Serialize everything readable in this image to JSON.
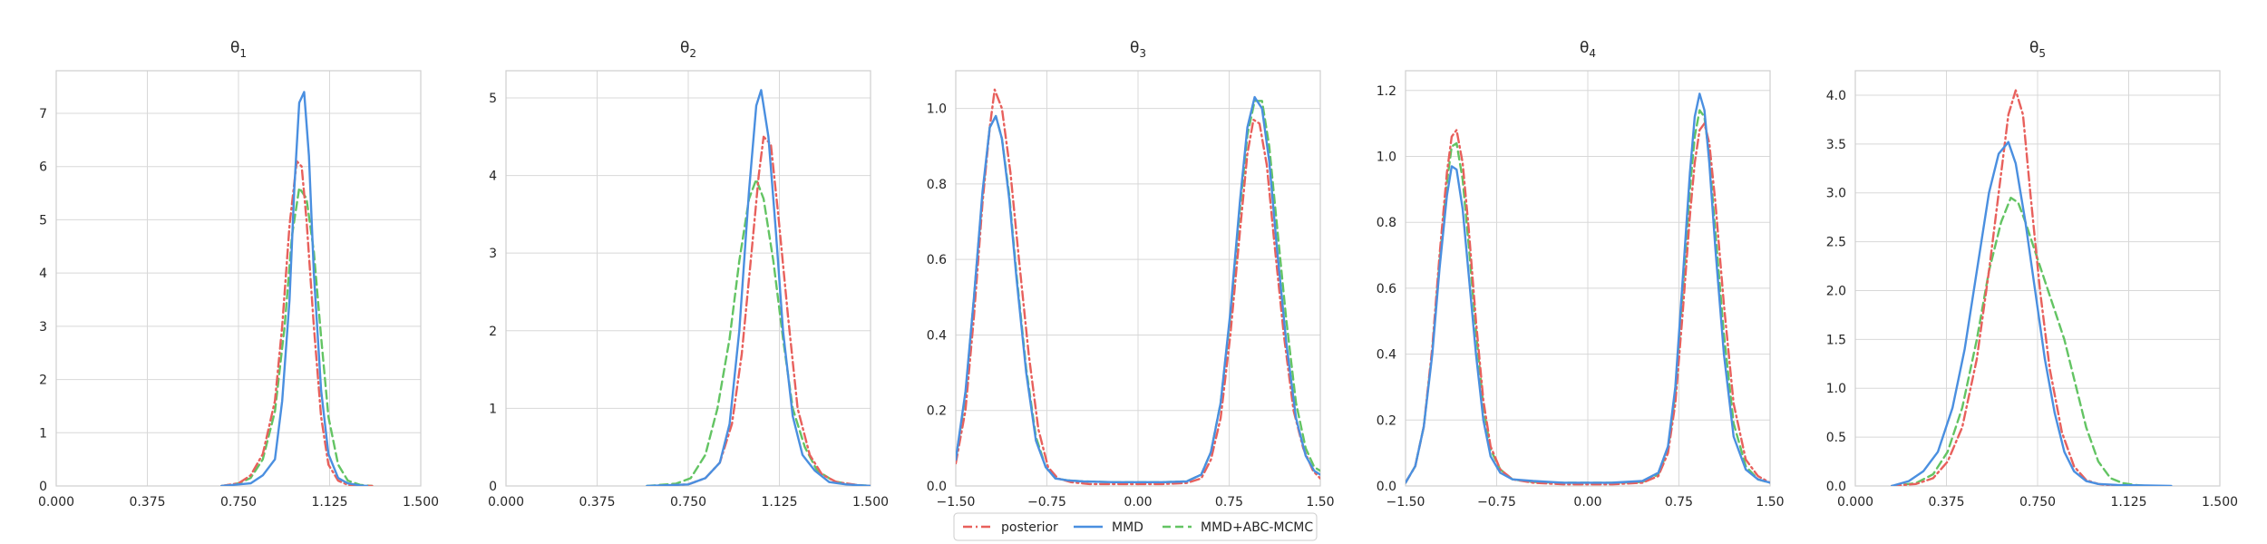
{
  "colors": {
    "posterior": "#e8605c",
    "mmd": "#4a8fe0",
    "mmd_abc": "#63c463",
    "grid": "#d8d8d8",
    "spine": "#cfcfcf"
  },
  "legend": {
    "placement": "bottom-center",
    "entries": [
      {
        "key": "posterior",
        "label": "posterior",
        "dash": "dashdot"
      },
      {
        "key": "mmd",
        "label": "MMD",
        "dash": "solid"
      },
      {
        "key": "mmd_abc",
        "label": "MMD+ABC-MCMC",
        "dash": "dashed"
      }
    ]
  },
  "chart_data": [
    {
      "type": "line",
      "title": "θ1",
      "title_base": "θ",
      "title_sub": "1",
      "xlim": [
        0.0,
        1.5
      ],
      "ylim": [
        0,
        7.8
      ],
      "xticks": [
        "0.000",
        "0.375",
        "0.750",
        "1.125",
        "1.500"
      ],
      "yticks": [
        "0",
        "1",
        "2",
        "3",
        "4",
        "5",
        "6",
        "7"
      ],
      "grid": true,
      "series": [
        {
          "name": "posterior",
          "x": [
            0.68,
            0.75,
            0.8,
            0.85,
            0.9,
            0.93,
            0.96,
            0.99,
            1.01,
            1.03,
            1.06,
            1.09,
            1.12,
            1.16,
            1.2,
            1.25,
            1.3
          ],
          "y": [
            0,
            0.05,
            0.2,
            0.6,
            1.6,
            3.0,
            4.9,
            6.1,
            6.0,
            5.0,
            3.0,
            1.3,
            0.4,
            0.1,
            0.02,
            0,
            0
          ]
        },
        {
          "name": "MMD",
          "x": [
            0.68,
            0.8,
            0.85,
            0.9,
            0.93,
            0.96,
            0.98,
            1.0,
            1.02,
            1.04,
            1.06,
            1.09,
            1.12,
            1.16,
            1.2,
            1.25,
            1.28
          ],
          "y": [
            0,
            0.05,
            0.2,
            0.5,
            1.6,
            3.5,
            5.6,
            7.2,
            7.4,
            6.2,
            4.0,
            1.8,
            0.6,
            0.15,
            0.05,
            0.01,
            0
          ]
        },
        {
          "name": "MMD+ABC-MCMC",
          "x": [
            0.68,
            0.75,
            0.8,
            0.85,
            0.9,
            0.94,
            0.97,
            1.0,
            1.03,
            1.06,
            1.09,
            1.12,
            1.16,
            1.2,
            1.25,
            1.3
          ],
          "y": [
            0,
            0.05,
            0.15,
            0.5,
            1.4,
            3.0,
            4.7,
            5.6,
            5.4,
            4.4,
            2.8,
            1.3,
            0.4,
            0.1,
            0.02,
            0
          ]
        }
      ]
    },
    {
      "type": "line",
      "title": "θ2",
      "title_base": "θ",
      "title_sub": "2",
      "xlim": [
        0.0,
        1.5
      ],
      "ylim": [
        0,
        5.35
      ],
      "xticks": [
        "0.000",
        "0.375",
        "0.750",
        "1.125",
        "1.500"
      ],
      "yticks": [
        "0",
        "1",
        "2",
        "3",
        "4",
        "5"
      ],
      "grid": true,
      "series": [
        {
          "name": "posterior",
          "x": [
            0.6,
            0.75,
            0.82,
            0.88,
            0.93,
            0.97,
            1.01,
            1.04,
            1.06,
            1.09,
            1.12,
            1.16,
            1.2,
            1.25,
            1.3,
            1.36,
            1.45,
            1.5
          ],
          "y": [
            0,
            0.02,
            0.1,
            0.3,
            0.8,
            1.7,
            3.0,
            4.0,
            4.5,
            4.4,
            3.5,
            2.2,
            1.0,
            0.4,
            0.15,
            0.05,
            0.01,
            0
          ]
        },
        {
          "name": "MMD",
          "x": [
            0.58,
            0.75,
            0.82,
            0.88,
            0.92,
            0.96,
            1.0,
            1.03,
            1.05,
            1.08,
            1.11,
            1.14,
            1.18,
            1.22,
            1.27,
            1.33,
            1.4,
            1.5
          ],
          "y": [
            0,
            0.02,
            0.1,
            0.3,
            0.8,
            2.0,
            3.8,
            4.9,
            5.1,
            4.5,
            3.3,
            2.0,
            0.9,
            0.4,
            0.2,
            0.05,
            0.02,
            0
          ]
        },
        {
          "name": "MMD+ABC-MCMC",
          "x": [
            0.58,
            0.7,
            0.76,
            0.82,
            0.87,
            0.92,
            0.96,
            1.0,
            1.03,
            1.06,
            1.1,
            1.14,
            1.18,
            1.23,
            1.28,
            1.35,
            1.42,
            1.5
          ],
          "y": [
            0,
            0.03,
            0.1,
            0.4,
            1.0,
            1.9,
            2.9,
            3.7,
            3.95,
            3.7,
            2.9,
            1.9,
            1.0,
            0.5,
            0.2,
            0.06,
            0.02,
            0
          ]
        }
      ]
    },
    {
      "type": "line",
      "title": "θ3",
      "title_base": "θ",
      "title_sub": "3",
      "xlim": [
        -1.5,
        1.5
      ],
      "ylim": [
        0,
        1.1
      ],
      "xticks": [
        "−1.50",
        "−0.75",
        "0.00",
        "0.75",
        "1.50"
      ],
      "yticks": [
        "0.0",
        "0.2",
        "0.4",
        "0.6",
        "0.8",
        "1.0"
      ],
      "grid": true,
      "series": [
        {
          "name": "posterior",
          "x": [
            -1.5,
            -1.42,
            -1.35,
            -1.28,
            -1.22,
            -1.18,
            -1.12,
            -1.05,
            -0.98,
            -0.9,
            -0.82,
            -0.74,
            -0.66,
            -0.55,
            -0.4,
            -0.2,
            0.0,
            0.2,
            0.4,
            0.52,
            0.6,
            0.68,
            0.76,
            0.84,
            0.9,
            0.95,
            1.0,
            1.06,
            1.12,
            1.2,
            1.28,
            1.36,
            1.44,
            1.5
          ],
          "y": [
            0.06,
            0.2,
            0.45,
            0.75,
            0.95,
            1.05,
            1.0,
            0.83,
            0.6,
            0.35,
            0.15,
            0.05,
            0.02,
            0.01,
            0.005,
            0.005,
            0.005,
            0.005,
            0.008,
            0.02,
            0.07,
            0.18,
            0.4,
            0.68,
            0.88,
            0.97,
            0.96,
            0.85,
            0.65,
            0.4,
            0.2,
            0.1,
            0.04,
            0.02
          ]
        },
        {
          "name": "MMD",
          "x": [
            -1.5,
            -1.42,
            -1.35,
            -1.28,
            -1.22,
            -1.17,
            -1.12,
            -1.06,
            -1.0,
            -0.92,
            -0.84,
            -0.76,
            -0.68,
            -0.58,
            -0.45,
            -0.2,
            0.0,
            0.2,
            0.4,
            0.52,
            0.6,
            0.68,
            0.76,
            0.84,
            0.9,
            0.96,
            1.02,
            1.08,
            1.14,
            1.22,
            1.3,
            1.38,
            1.45,
            1.5
          ],
          "y": [
            0.07,
            0.25,
            0.5,
            0.78,
            0.95,
            0.98,
            0.92,
            0.76,
            0.55,
            0.3,
            0.12,
            0.05,
            0.02,
            0.015,
            0.012,
            0.01,
            0.01,
            0.01,
            0.012,
            0.03,
            0.09,
            0.22,
            0.46,
            0.76,
            0.95,
            1.03,
            1.0,
            0.86,
            0.64,
            0.38,
            0.18,
            0.08,
            0.04,
            0.03
          ]
        },
        {
          "name": "MMD+ABC-MCMC",
          "x": [
            -1.5,
            -1.42,
            -1.35,
            -1.28,
            -1.22,
            -1.17,
            -1.12,
            -1.06,
            -1.0,
            -0.92,
            -0.84,
            -0.76,
            -0.68,
            -0.58,
            -0.45,
            -0.2,
            0.0,
            0.2,
            0.4,
            0.52,
            0.6,
            0.68,
            0.76,
            0.84,
            0.9,
            0.96,
            1.02,
            1.08,
            1.14,
            1.22,
            1.3,
            1.38,
            1.45,
            1.5
          ],
          "y": [
            0.07,
            0.24,
            0.5,
            0.77,
            0.95,
            0.98,
            0.92,
            0.77,
            0.56,
            0.31,
            0.13,
            0.05,
            0.02,
            0.015,
            0.012,
            0.01,
            0.01,
            0.01,
            0.012,
            0.03,
            0.09,
            0.22,
            0.45,
            0.74,
            0.93,
            1.02,
            1.02,
            0.9,
            0.7,
            0.44,
            0.22,
            0.1,
            0.05,
            0.04
          ]
        }
      ]
    },
    {
      "type": "line",
      "title": "θ4",
      "title_base": "θ",
      "title_sub": "4",
      "xlim": [
        -1.5,
        1.5
      ],
      "ylim": [
        0,
        1.26
      ],
      "xticks": [
        "−1.50",
        "−0.75",
        "0.00",
        "0.75",
        "1.50"
      ],
      "yticks": [
        "0.0",
        "0.2",
        "0.4",
        "0.6",
        "0.8",
        "1.0",
        "1.2"
      ],
      "grid": true,
      "series": [
        {
          "name": "posterior",
          "x": [
            -1.5,
            -1.42,
            -1.35,
            -1.28,
            -1.22,
            -1.16,
            -1.12,
            -1.08,
            -1.03,
            -0.98,
            -0.92,
            -0.86,
            -0.8,
            -0.72,
            -0.62,
            -0.45,
            -0.2,
            0.0,
            0.2,
            0.45,
            0.58,
            0.66,
            0.72,
            0.78,
            0.84,
            0.88,
            0.92,
            0.96,
            1.0,
            1.05,
            1.12,
            1.2,
            1.3,
            1.4,
            1.5
          ],
          "y": [
            0.01,
            0.06,
            0.18,
            0.42,
            0.7,
            0.95,
            1.06,
            1.08,
            0.98,
            0.78,
            0.5,
            0.26,
            0.12,
            0.05,
            0.02,
            0.01,
            0.005,
            0.005,
            0.005,
            0.01,
            0.03,
            0.1,
            0.25,
            0.52,
            0.82,
            0.98,
            1.08,
            1.1,
            1.04,
            0.86,
            0.55,
            0.25,
            0.08,
            0.03,
            0.01
          ]
        },
        {
          "name": "MMD",
          "x": [
            -1.5,
            -1.42,
            -1.35,
            -1.28,
            -1.22,
            -1.16,
            -1.12,
            -1.08,
            -1.03,
            -0.98,
            -0.92,
            -0.86,
            -0.8,
            -0.72,
            -0.62,
            -0.45,
            -0.2,
            0.0,
            0.2,
            0.45,
            0.58,
            0.66,
            0.72,
            0.78,
            0.84,
            0.88,
            0.92,
            0.96,
            1.0,
            1.05,
            1.12,
            1.2,
            1.3,
            1.4,
            1.5
          ],
          "y": [
            0.01,
            0.06,
            0.18,
            0.4,
            0.66,
            0.88,
            0.97,
            0.96,
            0.84,
            0.64,
            0.4,
            0.2,
            0.09,
            0.04,
            0.02,
            0.015,
            0.01,
            0.01,
            0.01,
            0.015,
            0.04,
            0.12,
            0.3,
            0.62,
            0.95,
            1.12,
            1.19,
            1.14,
            0.98,
            0.72,
            0.4,
            0.15,
            0.05,
            0.02,
            0.01
          ]
        },
        {
          "name": "MMD+ABC-MCMC",
          "x": [
            -1.5,
            -1.42,
            -1.35,
            -1.28,
            -1.22,
            -1.16,
            -1.12,
            -1.08,
            -1.03,
            -0.98,
            -0.92,
            -0.86,
            -0.8,
            -0.72,
            -0.62,
            -0.45,
            -0.2,
            0.0,
            0.2,
            0.45,
            0.58,
            0.66,
            0.72,
            0.78,
            0.84,
            0.88,
            0.92,
            0.96,
            1.0,
            1.05,
            1.12,
            1.2,
            1.3,
            1.4,
            1.5
          ],
          "y": [
            0.01,
            0.06,
            0.18,
            0.41,
            0.68,
            0.92,
            1.03,
            1.04,
            0.93,
            0.73,
            0.47,
            0.24,
            0.11,
            0.05,
            0.02,
            0.012,
            0.01,
            0.01,
            0.01,
            0.012,
            0.035,
            0.11,
            0.28,
            0.58,
            0.9,
            1.06,
            1.14,
            1.12,
            1.0,
            0.77,
            0.46,
            0.19,
            0.06,
            0.02,
            0.01
          ]
        }
      ]
    },
    {
      "type": "line",
      "title": "θ5",
      "title_base": "θ",
      "title_sub": "5",
      "xlim": [
        0.0,
        1.5
      ],
      "ylim": [
        0,
        4.25
      ],
      "xticks": [
        "0.000",
        "0.375",
        "0.750",
        "1.125",
        "1.500"
      ],
      "yticks": [
        "0.0",
        "0.5",
        "1.0",
        "1.5",
        "2.0",
        "2.5",
        "3.0",
        "3.5",
        "4.0"
      ],
      "grid": true,
      "series": [
        {
          "name": "posterior",
          "x": [
            0.15,
            0.25,
            0.32,
            0.38,
            0.44,
            0.5,
            0.55,
            0.6,
            0.63,
            0.66,
            0.69,
            0.72,
            0.76,
            0.8,
            0.85,
            0.9,
            0.95,
            1.0,
            1.05,
            1.12,
            1.2
          ],
          "y": [
            0,
            0.02,
            0.08,
            0.25,
            0.6,
            1.3,
            2.2,
            3.2,
            3.8,
            4.05,
            3.8,
            3.0,
            2.0,
            1.2,
            0.55,
            0.2,
            0.06,
            0.02,
            0.005,
            0,
            0
          ]
        },
        {
          "name": "MMD",
          "x": [
            0.15,
            0.22,
            0.28,
            0.34,
            0.4,
            0.45,
            0.5,
            0.55,
            0.59,
            0.63,
            0.66,
            0.7,
            0.74,
            0.78,
            0.82,
            0.86,
            0.9,
            0.95,
            1.0,
            1.08,
            1.2,
            1.3
          ],
          "y": [
            0,
            0.05,
            0.15,
            0.35,
            0.8,
            1.4,
            2.2,
            3.0,
            3.4,
            3.52,
            3.3,
            2.7,
            2.0,
            1.3,
            0.75,
            0.35,
            0.15,
            0.05,
            0.02,
            0.01,
            0.005,
            0
          ]
        },
        {
          "name": "MMD+ABC-MCMC",
          "x": [
            0.15,
            0.25,
            0.32,
            0.38,
            0.44,
            0.5,
            0.55,
            0.6,
            0.64,
            0.67,
            0.7,
            0.74,
            0.78,
            0.82,
            0.86,
            0.9,
            0.95,
            1.0,
            1.05,
            1.1,
            1.15,
            1.2
          ],
          "y": [
            0,
            0.03,
            0.12,
            0.35,
            0.8,
            1.5,
            2.2,
            2.7,
            2.95,
            2.9,
            2.7,
            2.4,
            2.1,
            1.8,
            1.5,
            1.1,
            0.6,
            0.25,
            0.08,
            0.03,
            0.01,
            0
          ]
        }
      ]
    }
  ]
}
